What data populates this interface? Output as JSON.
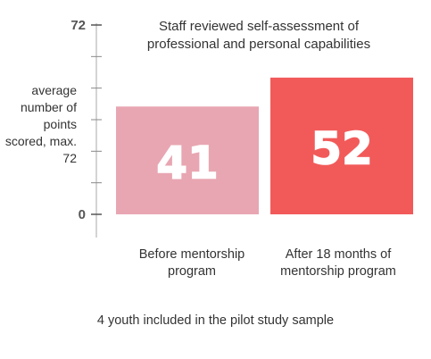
{
  "chart_data": {
    "type": "bar",
    "title": "Staff reviewed self-assessment of professional and personal capabilities",
    "ylabel": "average number of points scored, max. 72",
    "categories": [
      "Before mentorship program",
      "After 18 months of mentorship program"
    ],
    "values": [
      41,
      52
    ],
    "value_labels": [
      "41",
      "52"
    ],
    "ylim": [
      0,
      72
    ],
    "yticks": [
      "0",
      "72"
    ],
    "minor_ticks": [
      12,
      24,
      36,
      48,
      60
    ],
    "colors": [
      "#e8a6b2",
      "#f25a5a"
    ],
    "note": "4 youth included in the pilot study sample",
    "grid": false
  }
}
